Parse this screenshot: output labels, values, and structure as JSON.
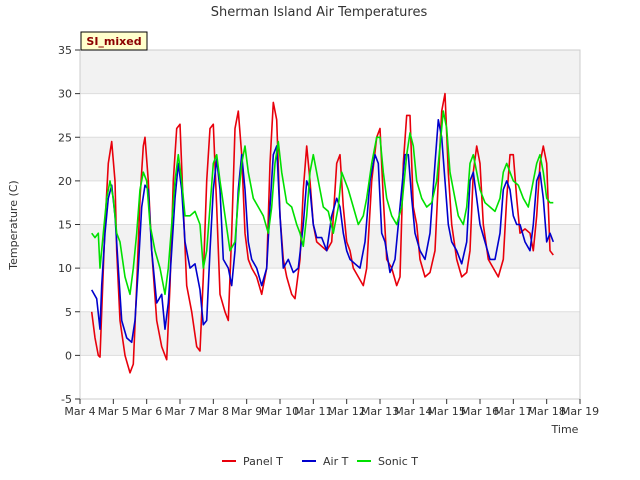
{
  "chart_data": {
    "type": "line",
    "title": "Sherman Island Air Temperatures",
    "xlabel": "Time",
    "ylabel": "Temperature (C)",
    "badge": "SI_mixed",
    "xlim": [
      4,
      19
    ],
    "ylim": [
      -5,
      35
    ],
    "xticks": [
      4,
      5,
      6,
      7,
      8,
      9,
      10,
      11,
      12,
      13,
      14,
      15,
      16,
      17,
      18,
      19
    ],
    "xtick_labels": [
      "Mar 4",
      "Mar 5",
      "Mar 6",
      "Mar 7",
      "Mar 8",
      "Mar 9",
      "Mar 10",
      "Mar 11",
      "Mar 12",
      "Mar 13",
      "Mar 14",
      "Mar 15",
      "Mar 16",
      "Mar 17",
      "Mar 18",
      "Mar 19"
    ],
    "yticks": [
      -5,
      0,
      5,
      10,
      15,
      20,
      25,
      30,
      35
    ],
    "grid": true,
    "legend_position": "bottom-center",
    "series": [
      {
        "name": "Panel T",
        "color": "#e8000b",
        "x": [
          4.35,
          4.45,
          4.55,
          4.6,
          4.65,
          4.75,
          4.85,
          4.95,
          5.05,
          5.1,
          5.2,
          5.35,
          5.5,
          5.6,
          5.7,
          5.8,
          5.9,
          5.95,
          6.05,
          6.15,
          6.3,
          6.45,
          6.55,
          6.6,
          6.7,
          6.8,
          6.9,
          7.0,
          7.1,
          7.2,
          7.35,
          7.5,
          7.6,
          7.7,
          7.8,
          7.9,
          8.0,
          8.1,
          8.2,
          8.35,
          8.45,
          8.55,
          8.65,
          8.75,
          8.85,
          8.95,
          9.05,
          9.15,
          9.3,
          9.45,
          9.6,
          9.7,
          9.8,
          9.9,
          10.0,
          10.1,
          10.2,
          10.35,
          10.45,
          10.6,
          10.7,
          10.8,
          10.9,
          11.0,
          11.1,
          11.25,
          11.4,
          11.55,
          11.7,
          11.8,
          11.9,
          12.0,
          12.1,
          12.2,
          12.35,
          12.5,
          12.6,
          12.75,
          12.9,
          13.0,
          13.1,
          13.2,
          13.35,
          13.5,
          13.6,
          13.7,
          13.8,
          13.9,
          14.0,
          14.1,
          14.2,
          14.35,
          14.5,
          14.65,
          14.75,
          14.85,
          14.95,
          15.05,
          15.15,
          15.3,
          15.45,
          15.6,
          15.7,
          15.8,
          15.9,
          16.0,
          16.1,
          16.25,
          16.4,
          16.55,
          16.7,
          16.8,
          16.9,
          17.0,
          17.1,
          17.2,
          17.35,
          17.5,
          17.6,
          17.7,
          17.8,
          17.9,
          18.0,
          18.1,
          18.2
        ],
        "values": [
          5,
          2,
          0,
          -0.2,
          5,
          15,
          22,
          24.5,
          20,
          12,
          4,
          0,
          -2,
          -1,
          8,
          18,
          24,
          25,
          20,
          12,
          4,
          1,
          0,
          -0.5,
          8,
          20,
          26,
          26.5,
          17,
          8,
          5,
          1,
          0.5,
          9,
          20,
          26,
          26.5,
          17,
          7,
          5,
          4,
          14,
          26,
          28,
          23,
          14,
          11,
          10,
          9,
          7,
          10,
          22,
          29,
          27,
          16,
          11,
          9,
          7,
          6.5,
          11,
          19,
          24,
          20,
          15,
          13,
          12.5,
          12,
          13,
          22,
          23,
          17,
          13,
          12,
          10,
          9,
          8,
          10,
          20,
          25,
          26,
          18,
          11,
          10,
          8,
          9,
          22,
          27.5,
          27.5,
          17,
          15,
          11,
          9,
          9.5,
          12,
          20,
          28,
          30,
          21,
          15,
          11,
          9,
          9.5,
          12,
          21,
          24,
          22,
          15,
          11,
          10,
          9,
          11,
          18,
          23,
          23,
          18,
          14,
          14.5,
          14,
          12,
          16,
          22,
          24,
          22,
          12,
          11.5
        ]
      },
      {
        "name": "Air T",
        "color": "#0000cd",
        "x": [
          4.35,
          4.5,
          4.6,
          4.65,
          4.75,
          4.85,
          4.95,
          5.05,
          5.15,
          5.25,
          5.4,
          5.55,
          5.65,
          5.75,
          5.85,
          5.95,
          6.05,
          6.15,
          6.3,
          6.45,
          6.55,
          6.65,
          6.75,
          6.85,
          6.95,
          7.05,
          7.15,
          7.3,
          7.45,
          7.6,
          7.7,
          7.8,
          7.9,
          8.0,
          8.1,
          8.2,
          8.3,
          8.45,
          8.55,
          8.65,
          8.75,
          8.85,
          8.95,
          9.05,
          9.15,
          9.3,
          9.45,
          9.6,
          9.7,
          9.8,
          9.9,
          10.0,
          10.1,
          10.25,
          10.4,
          10.55,
          10.7,
          10.8,
          10.9,
          11.0,
          11.1,
          11.25,
          11.4,
          11.55,
          11.7,
          11.8,
          11.9,
          12.0,
          12.1,
          12.25,
          12.4,
          12.55,
          12.7,
          12.85,
          12.95,
          13.05,
          13.15,
          13.3,
          13.45,
          13.6,
          13.75,
          13.85,
          13.95,
          14.05,
          14.2,
          14.35,
          14.5,
          14.65,
          14.75,
          14.85,
          14.95,
          15.05,
          15.15,
          15.3,
          15.45,
          15.6,
          15.7,
          15.8,
          15.9,
          16.0,
          16.15,
          16.3,
          16.45,
          16.6,
          16.7,
          16.8,
          16.9,
          17.0,
          17.1,
          17.2,
          17.35,
          17.5,
          17.6,
          17.7,
          17.8,
          17.9,
          18.0,
          18.1,
          18.2
        ],
        "values": [
          7.5,
          6.5,
          3,
          8,
          14,
          18,
          19.5,
          16,
          10,
          4,
          2,
          1.5,
          4,
          10,
          17,
          19.5,
          19,
          12,
          6,
          7,
          3,
          6,
          12,
          18,
          22,
          19,
          13,
          10,
          10.5,
          7.5,
          3.5,
          4,
          12,
          19,
          22.5,
          19,
          11,
          10,
          8,
          12,
          19,
          23,
          19,
          13,
          11,
          10,
          8,
          10,
          17,
          23,
          24,
          16,
          10,
          11,
          9.5,
          10,
          15,
          20,
          19,
          15,
          13.5,
          13.5,
          12,
          16,
          18,
          17,
          14,
          12,
          11,
          10.5,
          10,
          13,
          20,
          23,
          22,
          14,
          13,
          9.5,
          11,
          17,
          23,
          23,
          18,
          14,
          12,
          11,
          14,
          22,
          27,
          25,
          20,
          15,
          13,
          12,
          10.5,
          13,
          20,
          21,
          18,
          15,
          13,
          11,
          11,
          14,
          19,
          20,
          19,
          16,
          15,
          15,
          13,
          12,
          15,
          20,
          21,
          18,
          13,
          14,
          13
        ]
      },
      {
        "name": "Sonic T",
        "color": "#00e000",
        "x": [
          4.35,
          4.45,
          4.55,
          4.6,
          4.7,
          4.8,
          4.9,
          5.0,
          5.1,
          5.2,
          5.35,
          5.5,
          5.6,
          5.7,
          5.8,
          5.9,
          6.0,
          6.1,
          6.25,
          6.4,
          6.55,
          6.65,
          6.75,
          6.85,
          6.95,
          7.05,
          7.15,
          7.3,
          7.45,
          7.6,
          7.7,
          7.8,
          7.9,
          8.0,
          8.1,
          8.2,
          8.35,
          8.5,
          8.65,
          8.75,
          8.85,
          8.95,
          9.05,
          9.2,
          9.35,
          9.5,
          9.65,
          9.75,
          9.85,
          9.95,
          10.05,
          10.2,
          10.35,
          10.5,
          10.6,
          10.7,
          10.8,
          10.9,
          11.0,
          11.15,
          11.3,
          11.45,
          11.6,
          11.75,
          11.85,
          11.95,
          12.05,
          12.2,
          12.35,
          12.5,
          12.6,
          12.75,
          12.9,
          13.0,
          13.1,
          13.2,
          13.35,
          13.5,
          13.65,
          13.8,
          13.9,
          14.0,
          14.1,
          14.25,
          14.4,
          14.55,
          14.7,
          14.8,
          14.9,
          15.0,
          15.1,
          15.2,
          15.35,
          15.5,
          15.6,
          15.7,
          15.8,
          15.9,
          16.0,
          16.15,
          16.3,
          16.45,
          16.6,
          16.7,
          16.8,
          16.9,
          17.0,
          17.15,
          17.3,
          17.45,
          17.6,
          17.7,
          17.8,
          17.9,
          18.0,
          18.1,
          18.2
        ],
        "values": [
          14,
          13.5,
          14,
          10,
          14,
          18,
          20,
          18,
          14,
          13,
          9,
          7,
          10,
          14,
          19,
          21,
          20,
          15,
          12,
          10,
          7,
          10,
          15,
          20,
          23,
          20,
          16,
          16,
          16.5,
          15,
          10,
          12,
          17,
          22,
          23,
          20,
          16,
          12,
          13,
          18,
          22,
          24,
          21,
          18,
          17,
          16,
          14,
          17,
          22,
          24.5,
          21,
          17.5,
          17,
          15,
          14,
          12.5,
          16,
          21,
          23,
          20,
          17,
          16.5,
          14,
          17,
          21,
          20,
          19,
          17,
          15,
          16,
          18,
          22,
          25,
          25,
          21,
          18,
          16,
          15,
          17,
          23,
          25.5,
          24,
          20,
          18,
          17,
          17.5,
          20,
          24,
          28,
          26,
          21,
          19,
          16,
          15,
          17,
          22,
          23,
          21,
          19,
          17.5,
          17,
          16.5,
          18,
          21,
          22,
          21,
          20,
          19.5,
          18,
          17,
          20,
          22,
          23,
          21,
          18,
          17.5,
          17.5
        ]
      }
    ]
  }
}
